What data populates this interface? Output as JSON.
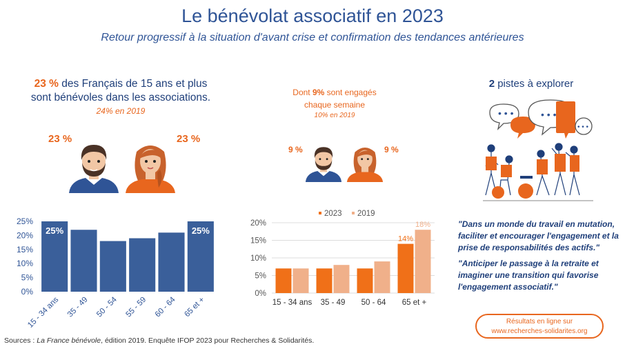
{
  "title": "Le bénévolat associatif en 2023",
  "subtitle": "Retour progressif à la situation d'avant crise et confirmation des tendances antérieures",
  "left_panel": {
    "headline_pct": "23 %",
    "headline_line1": " des Français de 15 ans et plus",
    "headline_line2": "sont bénévoles dans les associations.",
    "sub": "24% en 2019",
    "men_pct": "23 %",
    "women_pct": "23 %"
  },
  "middle_panel": {
    "line1_pre": "Dont ",
    "line1_pct": "9%",
    "line1_post": " sont engagés",
    "line2": "chaque semaine",
    "sub": "10% en 2019",
    "men_pct": "9 %",
    "women_pct": "9 %"
  },
  "right_panel": {
    "pistes_num": "2",
    "pistes_text": " pistes à explorer",
    "quote1": "\"Dans un monde du travail en mutation, faciliter et encourager l'engagement et la prise de responsabilités des actifs.\"",
    "quote2": "\"Anticiper le passage à la retraite et imaginer une transition qui favorise l'engagement associatif.\"",
    "pill_line1": "Résultats en ligne sur",
    "pill_line2": "www.recherches-solidarites.org"
  },
  "source_prefix": "Sources : ",
  "source_italic": "La France bénévole",
  "source_suffix": ", édition 2019. Enquête IFOP 2023 pour Recherches & Solidarités.",
  "colors": {
    "navy": "#2f5496",
    "orange": "#e8661e",
    "orange_dark": "#f07018",
    "orange_light": "#f0b08a"
  },
  "icons": [
    "man-avatar-icon",
    "woman-avatar-icon",
    "speech-bubbles-illustration"
  ],
  "chart_data": [
    {
      "type": "bar",
      "categories": [
        "15 - 34 ans",
        "35 - 49",
        "50 - 54",
        "55 - 59",
        "60 - 64",
        "65 et +"
      ],
      "values": [
        25,
        22,
        18,
        19,
        21,
        25
      ],
      "value_labels": [
        "25%",
        "",
        "",
        "",
        "",
        "25%"
      ],
      "yticks": [
        "0%",
        "5%",
        "10%",
        "15%",
        "20%",
        "25%"
      ],
      "ylim": [
        0,
        25
      ],
      "color": "#3a5f9a"
    },
    {
      "type": "bar",
      "categories": [
        "15 - 34 ans",
        "35 - 49",
        "50 - 64",
        "65 et +"
      ],
      "series": [
        {
          "name": "2023",
          "values": [
            7,
            7,
            7,
            14
          ],
          "labels": [
            "",
            "",
            "",
            "14%"
          ],
          "color": "#f07018"
        },
        {
          "name": "2019",
          "values": [
            7,
            8,
            9,
            18
          ],
          "labels": [
            "",
            "",
            "",
            "18%"
          ],
          "color": "#f0b08a"
        }
      ],
      "yticks": [
        "0%",
        "5%",
        "10%",
        "15%",
        "20%"
      ],
      "ylim": [
        0,
        20
      ],
      "legend": "top"
    }
  ]
}
